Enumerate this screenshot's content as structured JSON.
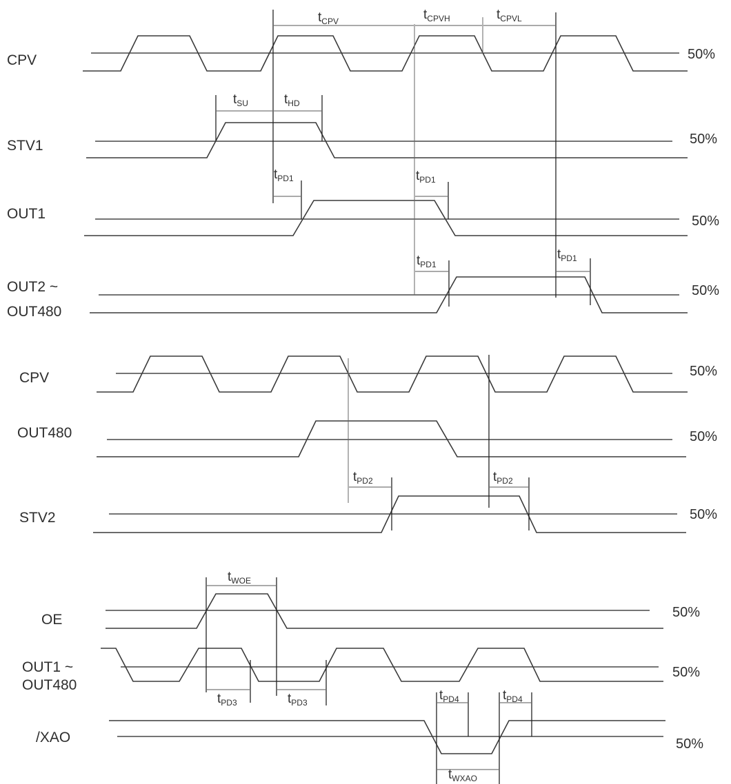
{
  "level_label": "50%",
  "signals": {
    "cpv_a": "CPV",
    "stv1": "STV1",
    "out1": "OUT1",
    "out2_line1": "OUT2 ~",
    "out2_line2": "OUT480",
    "cpv_b": "CPV",
    "out480": "OUT480",
    "stv2": "STV2",
    "oe": "OE",
    "out1x_line1": "OUT1 ~",
    "out1x_line2": "OUT480",
    "xao": "/XAO"
  },
  "timings": {
    "t_cpv": {
      "main": "t",
      "sub": "CPV"
    },
    "t_cpvh": {
      "main": "t",
      "sub": "CPVH"
    },
    "t_cpvl": {
      "main": "t",
      "sub": "CPVL"
    },
    "t_su": {
      "main": "t",
      "sub": "SU"
    },
    "t_hd": {
      "main": "t",
      "sub": "HD"
    },
    "t_pd1": {
      "main": "t",
      "sub": "PD1"
    },
    "t_pd2": {
      "main": "t",
      "sub": "PD2"
    },
    "t_woe": {
      "main": "t",
      "sub": "WOE"
    },
    "t_pd3": {
      "main": "t",
      "sub": "PD3"
    },
    "t_pd4": {
      "main": "t",
      "sub": "PD4"
    },
    "t_wxao": {
      "main": "t",
      "sub": "WXAO"
    }
  }
}
